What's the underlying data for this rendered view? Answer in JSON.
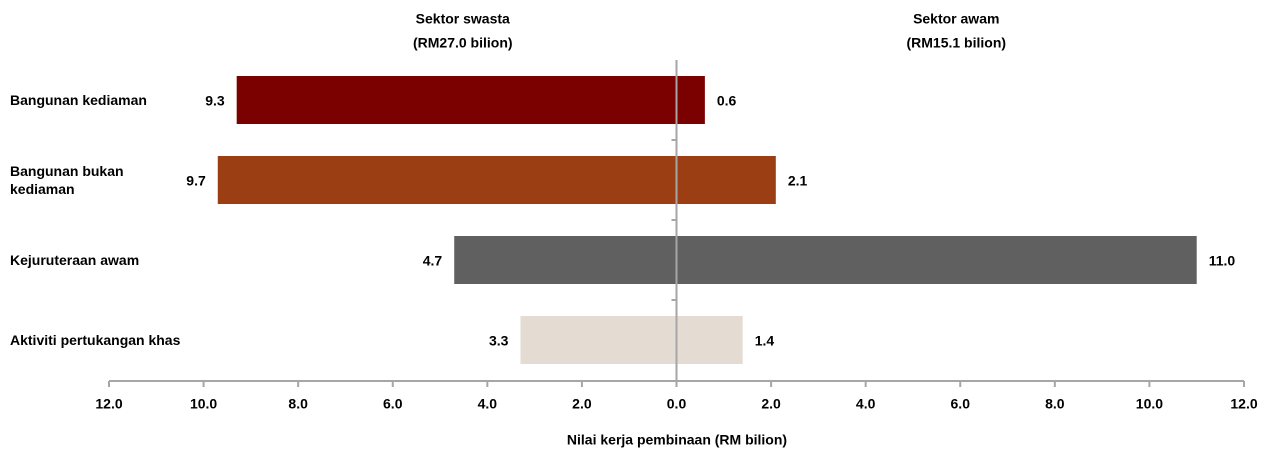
{
  "chart_data": {
    "type": "butterfly-bar",
    "xlabel": "Nilai kerja pembinaan  (RM bilion)",
    "categories": [
      "Bangunan kediaman",
      "Bangunan bukan\nkediaman",
      "Kejuruteraan awam",
      "Aktiviti pertukangan khas"
    ],
    "colors": [
      "#7b0000",
      "#9c3e14",
      "#606060",
      "#e4dcd2"
    ],
    "series": [
      {
        "name": "Sektor swasta",
        "subtitle": "(RM27.0 bilion)",
        "values": [
          -9.3,
          -9.7,
          -4.7,
          -3.3
        ],
        "value_labels": [
          "9.3",
          "9.7",
          "4.7",
          "3.3"
        ]
      },
      {
        "name": "Sektor awam",
        "subtitle": "(RM15.1 bilion)",
        "values": [
          0.6,
          2.1,
          11.0,
          1.4
        ],
        "value_labels": [
          "0.6",
          "2.1",
          "11.0",
          "1.4"
        ]
      }
    ],
    "xlim": [
      -12,
      12
    ],
    "xticks": [
      {
        "value": -12,
        "label": "12.0"
      },
      {
        "value": -10,
        "label": "10.0"
      },
      {
        "value": -8,
        "label": "8.0"
      },
      {
        "value": -6,
        "label": "6.0"
      },
      {
        "value": -4,
        "label": "4.0"
      },
      {
        "value": -2,
        "label": "2.0"
      },
      {
        "value": 0,
        "label": "0.0"
      },
      {
        "value": 2,
        "label": "2.0"
      },
      {
        "value": 4,
        "label": "4.0"
      },
      {
        "value": 6,
        "label": "6.0"
      },
      {
        "value": 8,
        "label": "8.0"
      },
      {
        "value": 10,
        "label": "10.0"
      },
      {
        "value": 12,
        "label": "12.0"
      }
    ]
  }
}
